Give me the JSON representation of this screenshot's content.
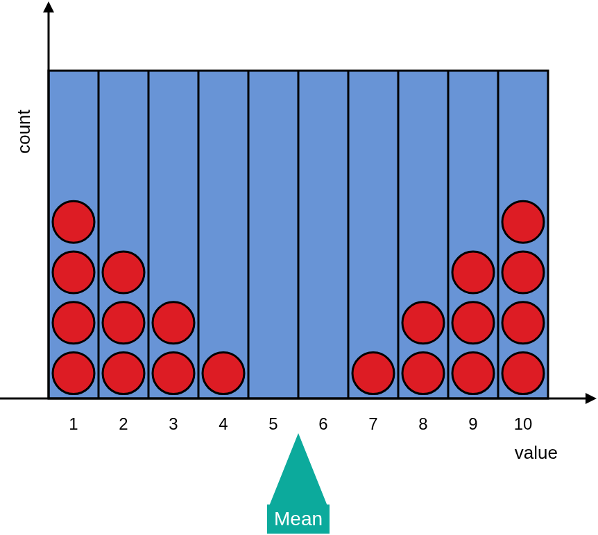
{
  "chart_data": {
    "type": "dot",
    "x_label": "value",
    "y_label": "count",
    "x": [
      1,
      2,
      3,
      4,
      5,
      6,
      7,
      8,
      9,
      10
    ],
    "values": [
      4,
      3,
      2,
      1,
      0,
      0,
      1,
      2,
      3,
      4
    ],
    "color": "#dd1c24",
    "marker": "circle",
    "xlim": [
      0.5,
      10.5
    ],
    "xticks": [
      1,
      2,
      3,
      4,
      5,
      6,
      7,
      8,
      9,
      10
    ],
    "ylim": [
      0,
      6.5
    ],
    "tick_labels": "x",
    "annotations": [
      {
        "text": "Mean",
        "x": 5.5
      }
    ]
  }
}
